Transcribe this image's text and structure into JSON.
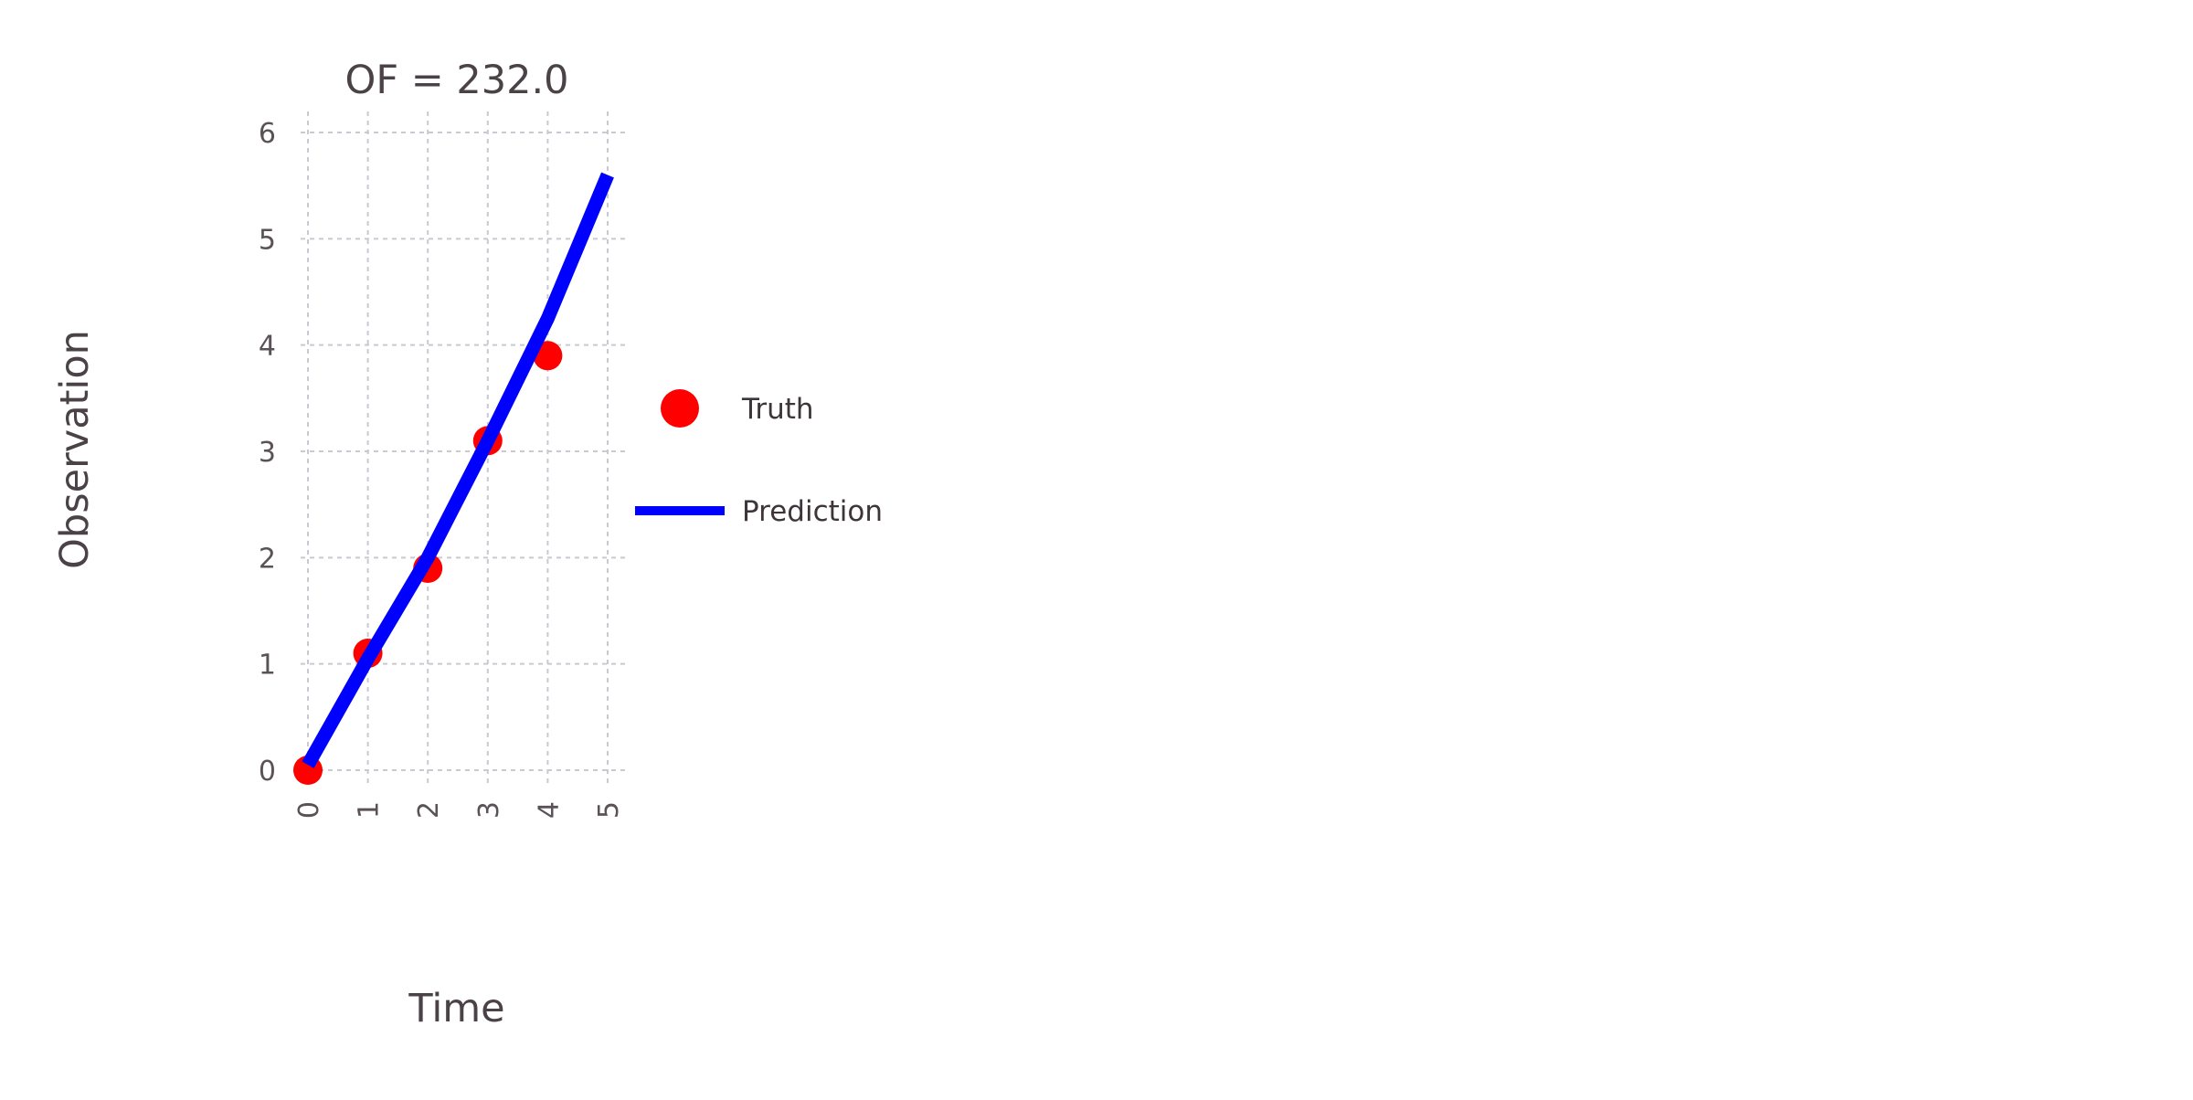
{
  "chart_data": {
    "type": "line",
    "title": "OF = 232.0",
    "xlabel": "Time",
    "ylabel": "Observation",
    "xlim": [
      0,
      5
    ],
    "ylim": [
      0,
      6
    ],
    "x_ticks": [
      "0",
      "1",
      "2",
      "3",
      "4",
      "5"
    ],
    "y_ticks": [
      "0",
      "1",
      "2",
      "3",
      "4",
      "5",
      "6"
    ],
    "grid": true,
    "legend_placement": "right",
    "series": [
      {
        "name": "Truth",
        "kind": "scatter",
        "color": "#ff0000",
        "x": [
          0,
          1,
          2,
          3,
          4
        ],
        "y": [
          0.0,
          1.1,
          1.9,
          3.1,
          3.9
        ]
      },
      {
        "name": "Prediction",
        "kind": "line",
        "color": "#0000ff",
        "x": [
          0,
          1,
          2,
          3,
          4,
          5
        ],
        "y": [
          0.05,
          1.05,
          2.0,
          3.1,
          4.25,
          5.6
        ]
      }
    ]
  }
}
